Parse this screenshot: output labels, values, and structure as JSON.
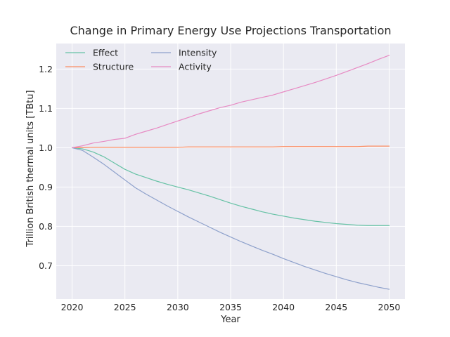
{
  "chart_data": {
    "type": "line",
    "title": "Change in Primary Energy Use Projections Transportation",
    "xlabel": "Year",
    "ylabel": "Trillion British thermal units [TBtu]",
    "xlim": [
      2018.5,
      2051.5
    ],
    "ylim": [
      0.615,
      1.265
    ],
    "xticks": [
      2020,
      2025,
      2030,
      2035,
      2040,
      2045,
      2050
    ],
    "yticks": [
      0.7,
      0.8,
      0.9,
      1.0,
      1.1,
      1.2
    ],
    "ytick_labels": [
      "0.7",
      "0.8",
      "0.9",
      "1.0",
      "1.1",
      "1.2"
    ],
    "grid": true,
    "background": "#eaeaf2",
    "legend_position": "top-left",
    "legend_columns": 2,
    "x": [
      2020,
      2021,
      2022,
      2023,
      2024,
      2025,
      2026,
      2027,
      2028,
      2029,
      2030,
      2031,
      2032,
      2033,
      2034,
      2035,
      2036,
      2037,
      2038,
      2039,
      2040,
      2041,
      2042,
      2043,
      2044,
      2045,
      2046,
      2047,
      2048,
      2049,
      2050
    ],
    "series": [
      {
        "name": "Effect",
        "color": "#66c2a5",
        "values": [
          1.0,
          0.997,
          0.989,
          0.977,
          0.961,
          0.945,
          0.933,
          0.924,
          0.915,
          0.907,
          0.9,
          0.893,
          0.885,
          0.877,
          0.868,
          0.859,
          0.851,
          0.844,
          0.837,
          0.831,
          0.826,
          0.821,
          0.817,
          0.813,
          0.81,
          0.807,
          0.805,
          0.803,
          0.802,
          0.802,
          0.802
        ]
      },
      {
        "name": "Structure",
        "color": "#fc8d62",
        "values": [
          1.0,
          1.0,
          1.001,
          1.001,
          1.001,
          1.001,
          1.001,
          1.001,
          1.001,
          1.001,
          1.001,
          1.002,
          1.002,
          1.002,
          1.002,
          1.002,
          1.002,
          1.002,
          1.002,
          1.002,
          1.003,
          1.003,
          1.003,
          1.003,
          1.003,
          1.003,
          1.003,
          1.003,
          1.004,
          1.004,
          1.004
        ]
      },
      {
        "name": "Intensity",
        "color": "#8da0cb",
        "values": [
          1.0,
          0.993,
          0.976,
          0.958,
          0.938,
          0.918,
          0.898,
          0.882,
          0.867,
          0.852,
          0.838,
          0.824,
          0.811,
          0.798,
          0.785,
          0.773,
          0.761,
          0.75,
          0.739,
          0.729,
          0.718,
          0.708,
          0.698,
          0.689,
          0.68,
          0.672,
          0.664,
          0.657,
          0.651,
          0.645,
          0.64
        ]
      },
      {
        "name": "Activity",
        "color": "#e78ac3",
        "values": [
          1.0,
          1.005,
          1.012,
          1.016,
          1.021,
          1.024,
          1.034,
          1.042,
          1.05,
          1.059,
          1.068,
          1.077,
          1.086,
          1.094,
          1.102,
          1.108,
          1.116,
          1.122,
          1.128,
          1.134,
          1.142,
          1.15,
          1.158,
          1.166,
          1.175,
          1.184,
          1.194,
          1.204,
          1.214,
          1.225,
          1.235
        ]
      }
    ]
  }
}
